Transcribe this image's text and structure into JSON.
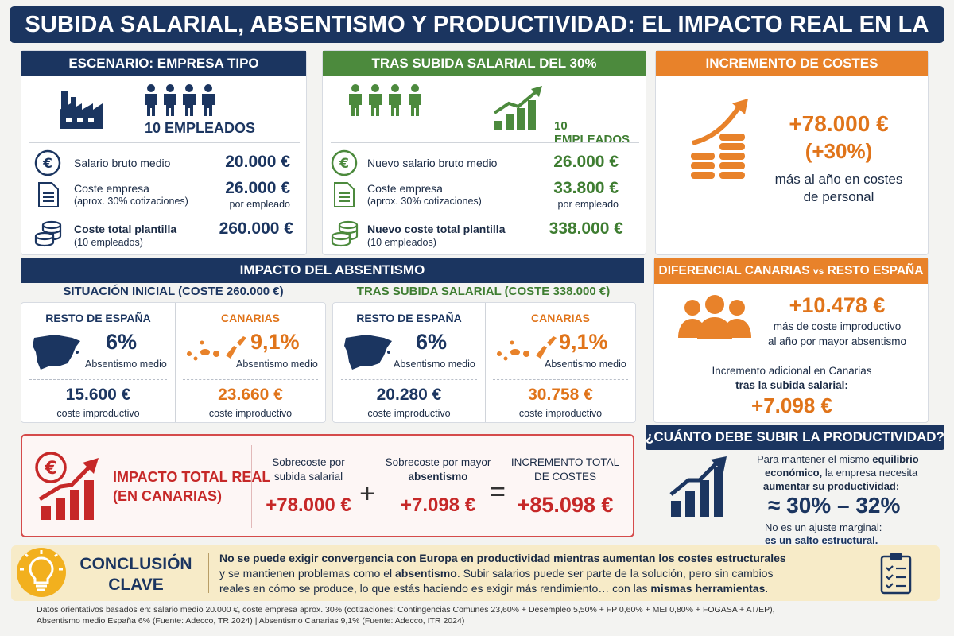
{
  "title": "SUBIDA SALARIAL, ABSENTISMO Y PRODUCTIVIDAD: EL IMPACTO REAL EN LA EMPRESA",
  "colors": {
    "navy": "#1b3560",
    "green": "#4c8a3d",
    "orange": "#e8822a",
    "red": "#c62828",
    "conclusion_bg": "#f7ebc8"
  },
  "escenario": {
    "header": "ESCENARIO: EMPRESA TIPO",
    "employees": "10 EMPLEADOS",
    "rows": [
      {
        "label": "Salario bruto medio",
        "value": "20.000 €"
      },
      {
        "label": "Coste empresa",
        "sublabel": "(aprox. 30% cotizaciones)",
        "value": "26.000 €",
        "value_sub": "por empleado"
      },
      {
        "label": "Coste total plantilla",
        "sublabel": "(10 empleados)",
        "value": "260.000 €"
      }
    ]
  },
  "tras_subida": {
    "header": "TRAS SUBIDA SALARIAL DEL 30%",
    "employees": "10 EMPLEADOS",
    "rows": [
      {
        "label": "Nuevo salario bruto medio",
        "value": "26.000 €"
      },
      {
        "label": "Coste empresa",
        "sublabel": "(aprox. 30% cotizaciones)",
        "value": "33.800 €",
        "value_sub": "por empleado"
      },
      {
        "label": "Nuevo coste total plantilla",
        "sublabel": "(10 empleados)",
        "value": "338.000 €"
      }
    ]
  },
  "incremento": {
    "header": "INCREMENTO DE COSTES",
    "amount": "+78.000 €",
    "pct": "(+30%)",
    "desc1": "más al año en costes",
    "desc2": "de personal"
  },
  "absentismo": {
    "header": "IMPACTO DEL ABSENTISMO",
    "inicial": {
      "title": "SITUACIÓN INICIAL (COSTE 260.000 €)",
      "resto": {
        "label": "RESTO DE ESPAÑA",
        "pct": "6%",
        "pct_label": "Absentismo medio",
        "cost": "15.600 €",
        "cost_label": "coste improductivo"
      },
      "canarias": {
        "label": "CANARIAS",
        "pct": "9,1%",
        "pct_label": "Absentismo medio",
        "cost": "23.660 €",
        "cost_label": "coste improductivo"
      }
    },
    "tras": {
      "title": "TRAS SUBIDA SALARIAL (COSTE 338.000 €)",
      "resto": {
        "label": "RESTO DE ESPAÑA",
        "pct": "6%",
        "pct_label": "Absentismo medio",
        "cost": "20.280 €",
        "cost_label": "coste improductivo"
      },
      "canarias": {
        "label": "CANARIAS",
        "pct": "9,1%",
        "pct_label": "Absentismo medio",
        "cost": "30.758 €",
        "cost_label": "coste improductivo"
      }
    }
  },
  "diferencial": {
    "header_a": "DIFERENCIAL CANARIAS",
    "header_vs": "vs",
    "header_b": "RESTO ESPAÑA",
    "amount": "+10.478 €",
    "desc1": "más de coste improductivo",
    "desc2": "al año por mayor absentismo",
    "extra1": "Incremento adicional en Canarias",
    "extra2": "tras la subida salarial:",
    "extra_amount": "+7.098 €"
  },
  "impacto_total": {
    "title1": "IMPACTO TOTAL REAL",
    "title2": "(EN CANARIAS)",
    "c1_label1": "Sobrecoste por",
    "c1_label2": "subida salarial",
    "c1_value": "+78.000 €",
    "plus": "+",
    "c2_label1": "Sobrecoste por mayor",
    "c2_label2": "absentismo",
    "c2_value": "+7.098 €",
    "equals": "=",
    "c3_label1": "INCREMENTO TOTAL",
    "c3_label2": "DE COSTES",
    "c3_value": "+85.098 €"
  },
  "productividad": {
    "header": "¿CUÁNTO DEBE SUBIR LA PRODUCTIVIDAD?",
    "t1a": "Para mantener el mismo ",
    "t1b": "equilibrio",
    "t2a": "económico,",
    "t2b": " la empresa necesita",
    "t3": "aumentar su productividad:",
    "range": "≈ 30% – 32%",
    "t4": "No es un ajuste marginal:",
    "t5": "es un salto estructural."
  },
  "conclusion": {
    "label1": "CONCLUSIÓN",
    "label2": "CLAVE",
    "line1": "No se puede exigir convergencia con Europa en productividad mientras aumentan los costes estructurales",
    "line2a": "y se mantienen problemas como el ",
    "line2b": "absentismo",
    "line2c": ". Subir salarios puede ser parte de la solución, pero sin cambios",
    "line3a": "reales en cómo se produce, lo que estás haciendo es exigir más rendimiento… con las ",
    "line3b": "mismas herramientas",
    "line3c": "."
  },
  "footnote": {
    "line1": "Datos orientativos basados en: salario medio 20.000 €, coste empresa aprox. 30% (cotizaciones: Contingencias Comunes 23,60% + Desempleo 5,50% + FP 0,60% + MEI 0,80% + FOGASA + AT/EP),",
    "line2": "Absentismo medio España 6% (Fuente: Adecco, TR 2024) | Absentismo Canarias 9,1% (Fuente: Adecco, ITR 2024)"
  }
}
